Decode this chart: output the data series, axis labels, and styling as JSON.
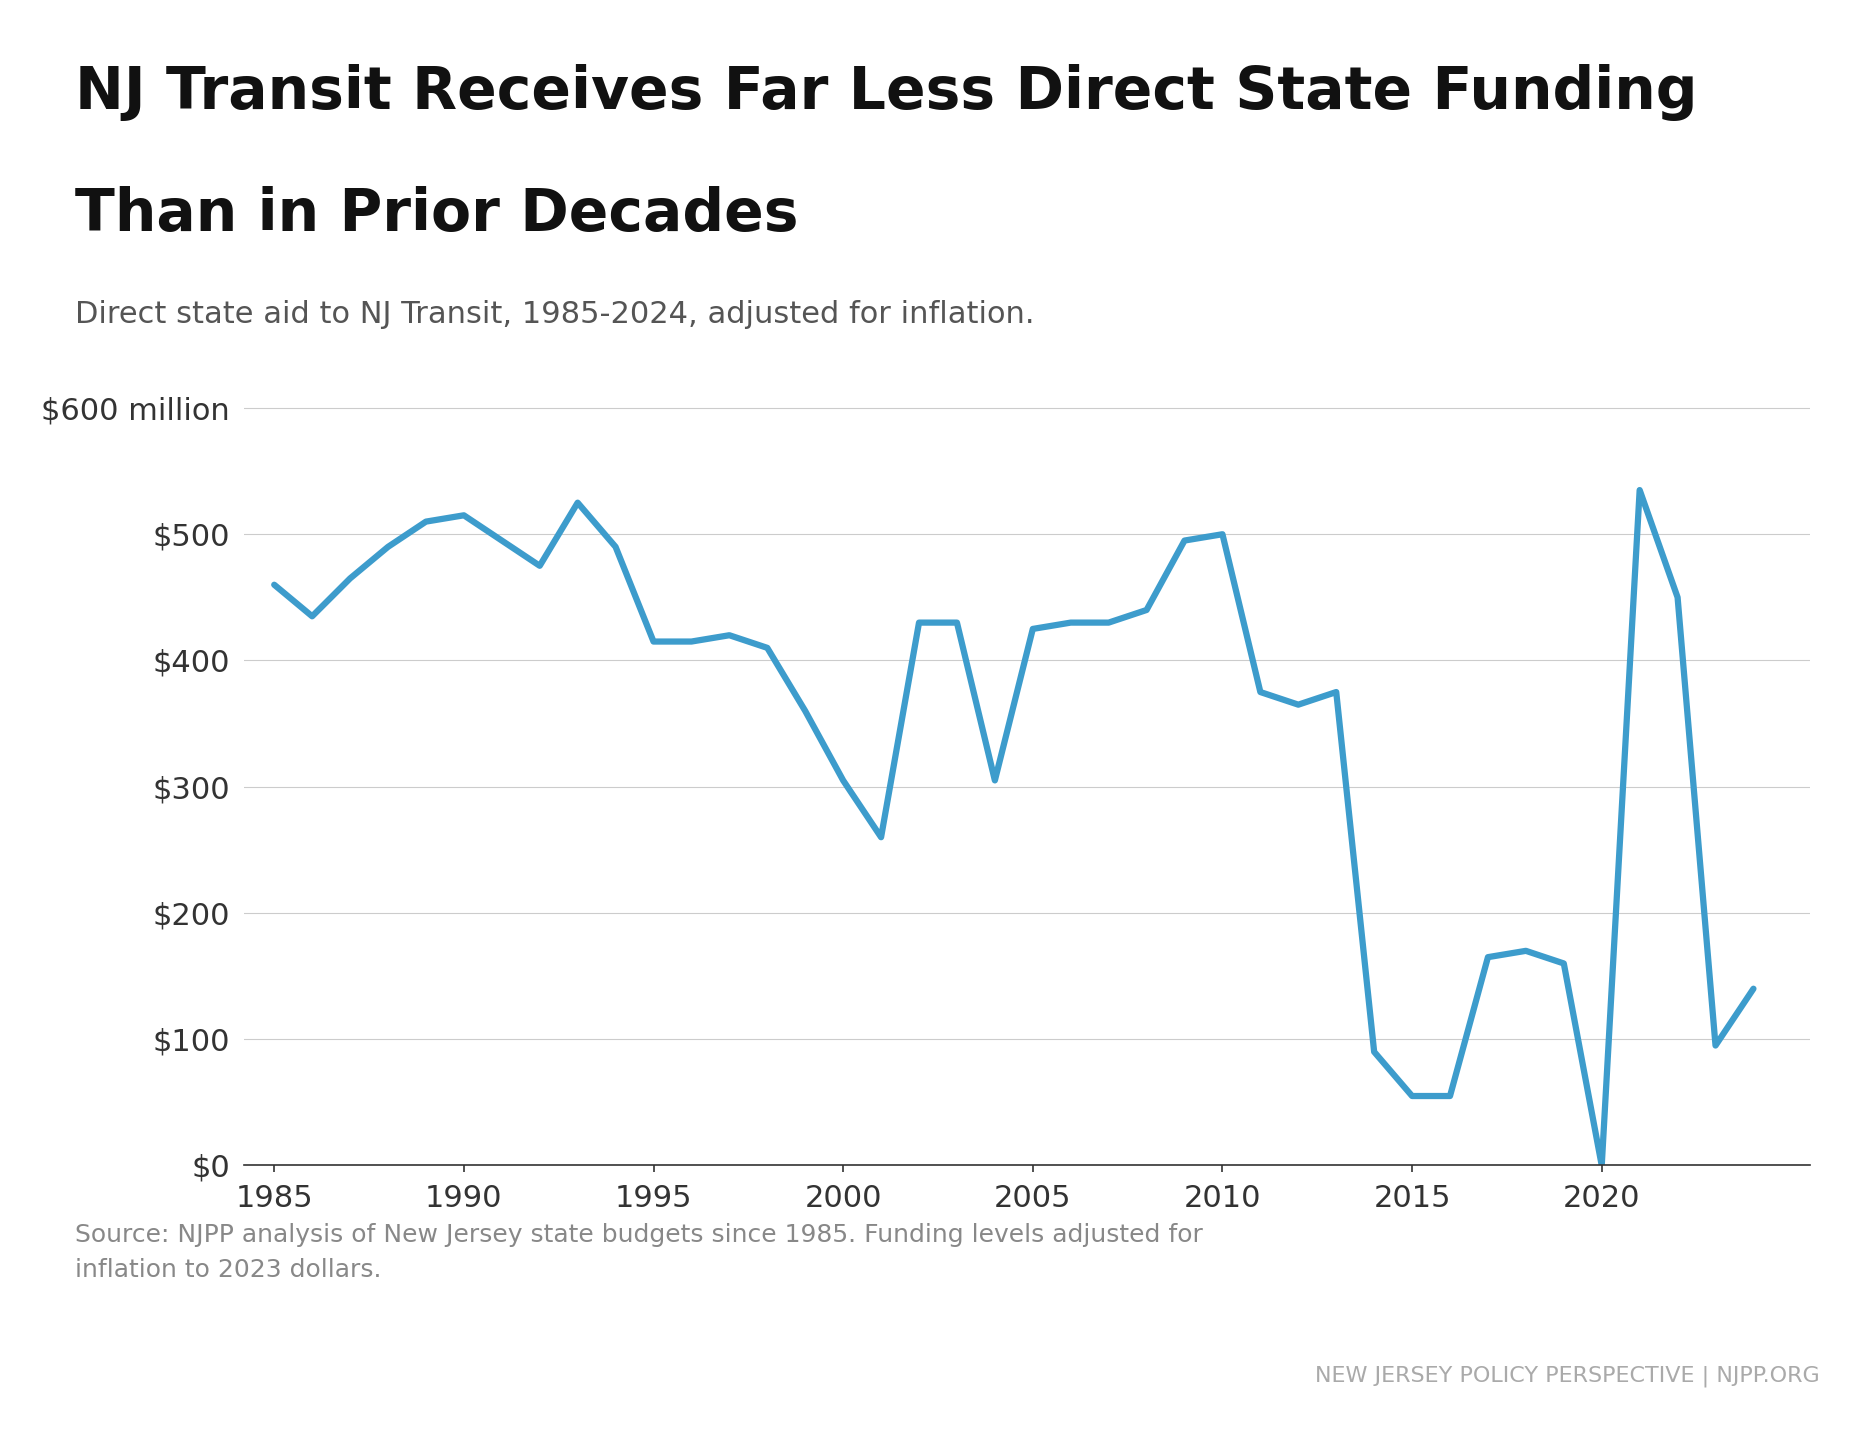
{
  "title_line1": "NJ Transit Receives Far Less Direct State Funding",
  "title_line2": "Than in Prior Decades",
  "subtitle": "Direct state aid to NJ Transit, 1985-2024, adjusted for inflation.",
  "source_text": "Source: NJPP analysis of New Jersey state budgets since 1985. Funding levels adjusted for\ninflation to 2023 dollars.",
  "footer_text": "NEW JERSEY POLICY PERSPECTIVE | NJPP.ORG",
  "line_color": "#3d9ccc",
  "background_color": "#ffffff",
  "years": [
    1985,
    1986,
    1987,
    1988,
    1989,
    1990,
    1991,
    1992,
    1993,
    1994,
    1995,
    1996,
    1997,
    1998,
    1999,
    2000,
    2001,
    2002,
    2003,
    2004,
    2005,
    2006,
    2007,
    2008,
    2009,
    2010,
    2011,
    2012,
    2013,
    2014,
    2015,
    2016,
    2017,
    2018,
    2019,
    2020,
    2021,
    2022,
    2023,
    2024
  ],
  "values": [
    460,
    435,
    465,
    490,
    510,
    515,
    495,
    475,
    525,
    490,
    415,
    415,
    420,
    410,
    360,
    305,
    260,
    430,
    430,
    305,
    425,
    430,
    430,
    440,
    495,
    500,
    375,
    365,
    375,
    90,
    55,
    55,
    165,
    170,
    160,
    0,
    535,
    450,
    95,
    140
  ],
  "ylim": [
    0,
    640
  ],
  "yticks": [
    0,
    100,
    200,
    300,
    400,
    500,
    600
  ],
  "ytick_labels": [
    "$0",
    "$100",
    "$200",
    "$300",
    "$400",
    "$500",
    "$600 million"
  ],
  "xticks": [
    1985,
    1990,
    1995,
    2000,
    2005,
    2010,
    2015,
    2020
  ],
  "line_width": 4.5,
  "title_fontsize": 42,
  "subtitle_fontsize": 22,
  "tick_fontsize": 22,
  "source_fontsize": 18,
  "footer_fontsize": 16,
  "top_bar_color": "#555555",
  "footer_bar_color": "#4a4a4a",
  "footer_text_color": "#aaaaaa",
  "title_color": "#111111",
  "subtitle_color": "#555555",
  "tick_color": "#333333",
  "grid_color": "#cccccc",
  "source_color": "#888888",
  "spine_color": "#333333"
}
